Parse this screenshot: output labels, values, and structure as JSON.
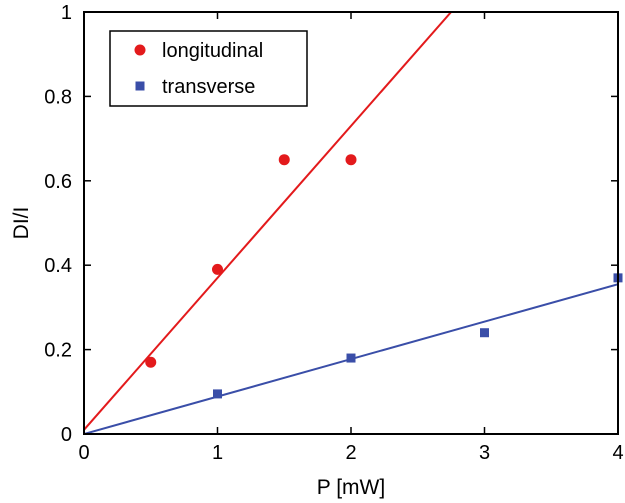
{
  "chart_data": {
    "type": "scatter",
    "xlabel": "P [mW]",
    "ylabel": "DI/I",
    "xlim": [
      0,
      4
    ],
    "ylim": [
      0,
      1
    ],
    "xticks": [
      "0",
      "1",
      "2",
      "3",
      "4"
    ],
    "yticks": [
      "0",
      "0.2",
      "0.4",
      "0.6",
      "0.8",
      "1"
    ],
    "grid": false,
    "legend_position": "top-left",
    "series": [
      {
        "name": "longitudinal",
        "color": "#e31a1c",
        "marker": "circle",
        "points": [
          {
            "x": 0.5,
            "y": 0.17
          },
          {
            "x": 1.0,
            "y": 0.39
          },
          {
            "x": 1.5,
            "y": 0.65
          },
          {
            "x": 2.0,
            "y": 0.65
          }
        ],
        "fit_line": {
          "x": [
            0,
            2.75
          ],
          "y": [
            0.01,
            1.0
          ]
        }
      },
      {
        "name": "transverse",
        "color": "#3a4ea8",
        "marker": "square",
        "points": [
          {
            "x": 1.0,
            "y": 0.095
          },
          {
            "x": 2.0,
            "y": 0.18
          },
          {
            "x": 3.0,
            "y": 0.24
          },
          {
            "x": 4.0,
            "y": 0.37
          }
        ],
        "fit_line": {
          "x": [
            0,
            4
          ],
          "y": [
            0.0,
            0.355
          ]
        }
      }
    ]
  }
}
